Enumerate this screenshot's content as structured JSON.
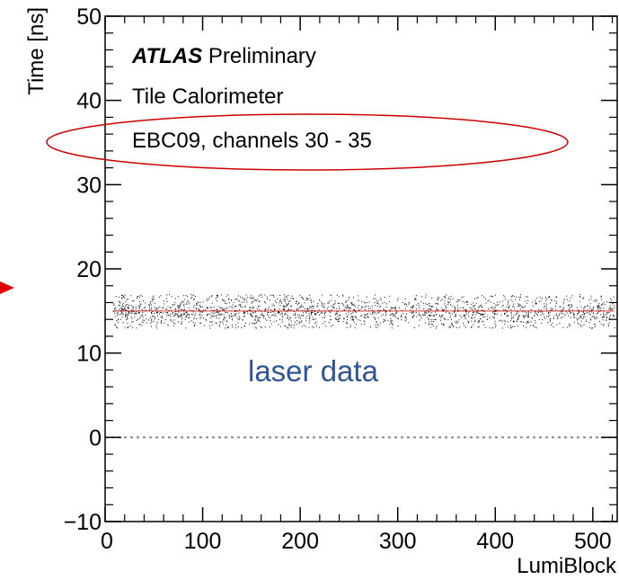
{
  "chart_data": {
    "type": "scatter",
    "title": "",
    "xlabel": "LumiBlock",
    "ylabel": "Time [ns]",
    "xlim": [
      0,
      525
    ],
    "ylim": [
      -10,
      50
    ],
    "x_ticks": [
      0,
      100,
      200,
      300,
      400,
      500
    ],
    "y_ticks": [
      -10,
      0,
      10,
      20,
      30,
      40,
      50
    ],
    "x_tick_labels": [
      "0",
      "100",
      "200",
      "300",
      "400",
      "500"
    ],
    "y_tick_labels": [
      "−10",
      "0",
      "10",
      "20",
      "30",
      "40",
      "50"
    ],
    "series": [
      {
        "x_range": [
          8,
          522
        ],
        "y_center": 15,
        "y_spread": [
          13,
          17
        ],
        "gaps_x": [
          128,
          220,
          258,
          302,
          306,
          310,
          312
        ],
        "color": "#000000",
        "mean_line_color": "#cc0000"
      }
    ],
    "reference_line": {
      "y": 0,
      "style": "dotted",
      "color": "#888888"
    },
    "annotations": {
      "experiment_bold": "ATLAS",
      "experiment_rest": " Preliminary",
      "detector": "Tile Calorimeter",
      "channels": "EBC09, channels 30 - 35",
      "laser": "laser data"
    },
    "colors": {
      "laser_text": "#2f5597",
      "highlight_ellipse": "#cc0000",
      "arrow": "#e00000"
    }
  }
}
